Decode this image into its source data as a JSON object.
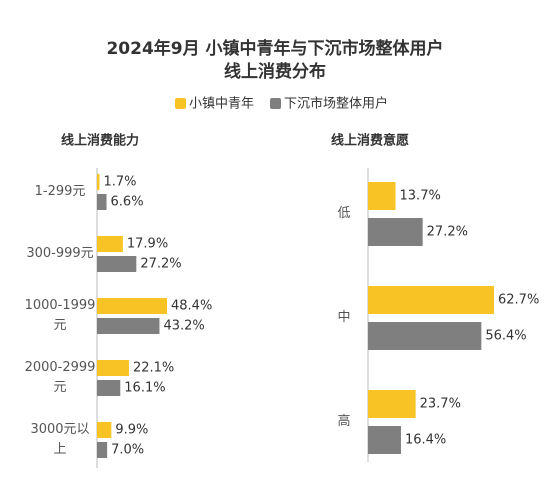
{
  "chart_data": [
    {
      "type": "bar",
      "orientation": "horizontal",
      "title": "2024年9月 小镇中青年与下沉市场整体用户\n线上消费分布",
      "subtitle": "线上消费能力",
      "categories": [
        "1-299元",
        "300-999元",
        "1000-1999元",
        "2000-2999元",
        "3000元以上"
      ],
      "series": [
        {
          "name": "小镇中青年",
          "color": "#f7c325",
          "values": [
            1.7,
            17.9,
            48.4,
            22.1,
            9.9
          ],
          "value_labels": [
            "1.7%",
            "17.9%",
            "48.4%",
            "22.1%",
            "9.9%"
          ]
        },
        {
          "name": "下沉市场整体用户",
          "color": "#7f7f7f",
          "values": [
            6.6,
            27.2,
            43.2,
            16.1,
            7.0
          ],
          "value_labels": [
            "6.6%",
            "27.2%",
            "43.2%",
            "16.1%",
            "7.0%"
          ]
        }
      ]
    },
    {
      "type": "bar",
      "orientation": "horizontal",
      "subtitle": "线上消费意愿",
      "categories": [
        "低",
        "中",
        "高"
      ],
      "series": [
        {
          "color": "#f7c325",
          "values": [
            13.7,
            62.7,
            23.7
          ],
          "value_labels": [
            "13.7%",
            "62.7%",
            "23.7%"
          ]
        },
        {
          "color": "#7f7f7f",
          "values": [
            27.2,
            56.4,
            16.4
          ],
          "value_labels": [
            "27.2%",
            "56.4%",
            "16.4%"
          ]
        }
      ]
    }
  ]
}
